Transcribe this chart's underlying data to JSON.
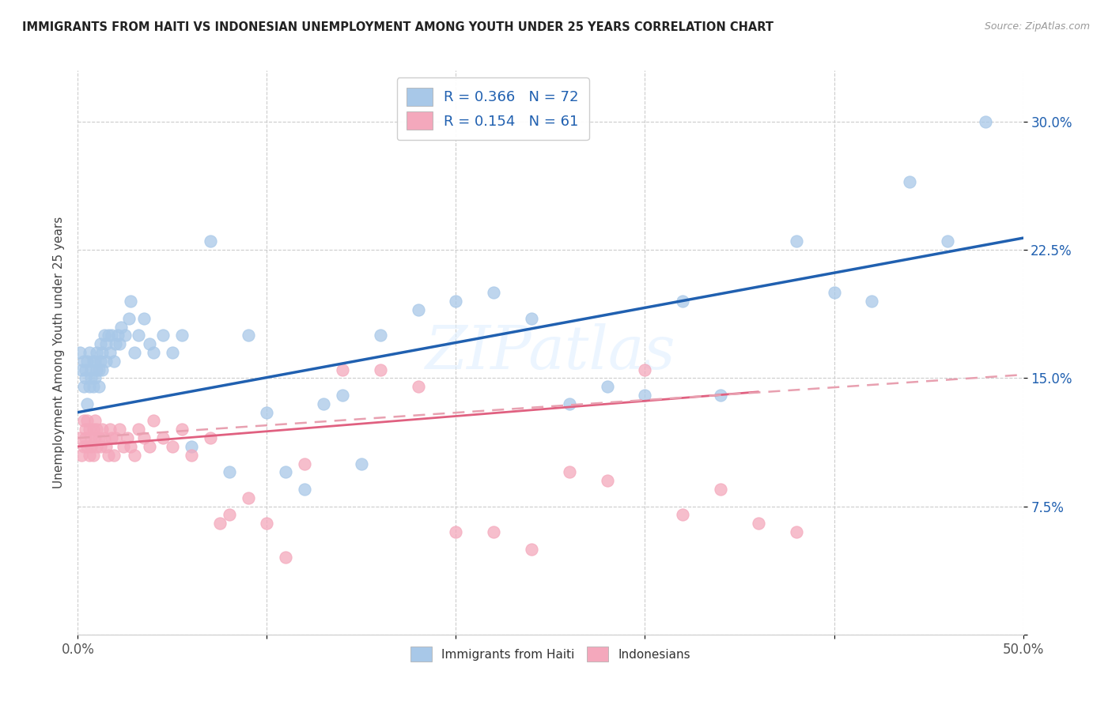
{
  "title": "IMMIGRANTS FROM HAITI VS INDONESIAN UNEMPLOYMENT AMONG YOUTH UNDER 25 YEARS CORRELATION CHART",
  "source": "Source: ZipAtlas.com",
  "ylabel": "Unemployment Among Youth under 25 years",
  "xlim": [
    0.0,
    0.5
  ],
  "ylim": [
    0.0,
    0.33
  ],
  "xticks": [
    0.0,
    0.1,
    0.2,
    0.3,
    0.4,
    0.5
  ],
  "xticklabels": [
    "0.0%",
    "",
    "",
    "",
    "",
    "50.0%"
  ],
  "ytick_vals": [
    0.0,
    0.075,
    0.15,
    0.225,
    0.3
  ],
  "ytick_labels": [
    "",
    "7.5%",
    "15.0%",
    "22.5%",
    "30.0%"
  ],
  "blue_color": "#a8c8e8",
  "pink_color": "#f4a8bc",
  "blue_line_color": "#2060b0",
  "pink_line_color": "#e06080",
  "pink_dashed_color": "#e8a0b0",
  "watermark": "ZIPatlas",
  "haiti_scatter_x": [
    0.001,
    0.002,
    0.003,
    0.003,
    0.004,
    0.004,
    0.005,
    0.005,
    0.006,
    0.006,
    0.007,
    0.007,
    0.008,
    0.008,
    0.009,
    0.009,
    0.01,
    0.01,
    0.011,
    0.011,
    0.012,
    0.012,
    0.013,
    0.013,
    0.014,
    0.015,
    0.015,
    0.016,
    0.017,
    0.018,
    0.019,
    0.02,
    0.021,
    0.022,
    0.023,
    0.025,
    0.027,
    0.028,
    0.03,
    0.032,
    0.035,
    0.038,
    0.04,
    0.045,
    0.05,
    0.055,
    0.06,
    0.07,
    0.08,
    0.09,
    0.1,
    0.11,
    0.12,
    0.13,
    0.14,
    0.15,
    0.16,
    0.18,
    0.2,
    0.22,
    0.24,
    0.26,
    0.28,
    0.3,
    0.32,
    0.34,
    0.38,
    0.4,
    0.42,
    0.44,
    0.46,
    0.48
  ],
  "haiti_scatter_y": [
    0.165,
    0.155,
    0.16,
    0.145,
    0.15,
    0.155,
    0.135,
    0.16,
    0.145,
    0.165,
    0.15,
    0.155,
    0.16,
    0.145,
    0.15,
    0.16,
    0.155,
    0.165,
    0.145,
    0.155,
    0.16,
    0.17,
    0.155,
    0.165,
    0.175,
    0.16,
    0.17,
    0.175,
    0.165,
    0.175,
    0.16,
    0.17,
    0.175,
    0.17,
    0.18,
    0.175,
    0.185,
    0.195,
    0.165,
    0.175,
    0.185,
    0.17,
    0.165,
    0.175,
    0.165,
    0.175,
    0.11,
    0.23,
    0.095,
    0.175,
    0.13,
    0.095,
    0.085,
    0.135,
    0.14,
    0.1,
    0.175,
    0.19,
    0.195,
    0.2,
    0.185,
    0.135,
    0.145,
    0.14,
    0.195,
    0.14,
    0.23,
    0.2,
    0.195,
    0.265,
    0.23,
    0.3
  ],
  "indonesia_scatter_x": [
    0.001,
    0.002,
    0.003,
    0.003,
    0.004,
    0.004,
    0.005,
    0.005,
    0.006,
    0.006,
    0.007,
    0.007,
    0.008,
    0.008,
    0.009,
    0.009,
    0.01,
    0.01,
    0.011,
    0.012,
    0.013,
    0.014,
    0.015,
    0.016,
    0.017,
    0.018,
    0.019,
    0.02,
    0.022,
    0.024,
    0.026,
    0.028,
    0.03,
    0.032,
    0.035,
    0.038,
    0.04,
    0.045,
    0.05,
    0.055,
    0.06,
    0.07,
    0.075,
    0.08,
    0.09,
    0.1,
    0.11,
    0.12,
    0.14,
    0.16,
    0.18,
    0.2,
    0.22,
    0.24,
    0.26,
    0.28,
    0.3,
    0.32,
    0.34,
    0.36,
    0.38
  ],
  "indonesia_scatter_y": [
    0.115,
    0.105,
    0.125,
    0.11,
    0.115,
    0.12,
    0.11,
    0.125,
    0.105,
    0.12,
    0.115,
    0.11,
    0.12,
    0.105,
    0.115,
    0.125,
    0.11,
    0.12,
    0.115,
    0.11,
    0.12,
    0.115,
    0.11,
    0.105,
    0.12,
    0.115,
    0.105,
    0.115,
    0.12,
    0.11,
    0.115,
    0.11,
    0.105,
    0.12,
    0.115,
    0.11,
    0.125,
    0.115,
    0.11,
    0.12,
    0.105,
    0.115,
    0.065,
    0.07,
    0.08,
    0.065,
    0.045,
    0.1,
    0.155,
    0.155,
    0.145,
    0.06,
    0.06,
    0.05,
    0.095,
    0.09,
    0.155,
    0.07,
    0.085,
    0.065,
    0.06
  ],
  "haiti_line_x0": 0.0,
  "haiti_line_x1": 0.5,
  "haiti_line_y0": 0.13,
  "haiti_line_y1": 0.232,
  "indo_solid_line_x0": 0.0,
  "indo_solid_line_x1": 0.36,
  "indo_solid_line_y0": 0.11,
  "indo_solid_line_y1": 0.142,
  "indo_dashed_line_x0": 0.0,
  "indo_dashed_line_x1": 0.5,
  "indo_dashed_line_y0": 0.115,
  "indo_dashed_line_y1": 0.152
}
